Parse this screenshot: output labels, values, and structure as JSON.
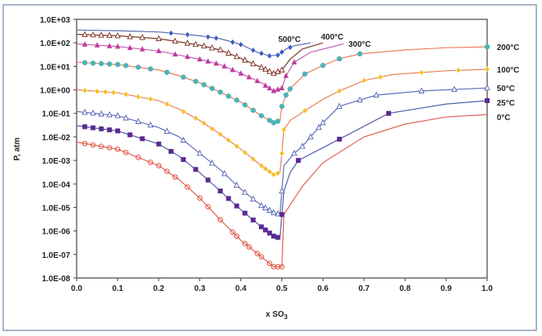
{
  "chart_data": {
    "type": "scatter",
    "title": "",
    "xlabel": "x SO",
    "xlabel_sub": "3",
    "ylabel": "P, atm",
    "xlim": [
      0,
      1
    ],
    "ylim": [
      1e-08,
      1000.0
    ],
    "yscale": "log",
    "grid": false,
    "xticks": [
      "0.0",
      "0.1",
      "0.2",
      "0.3",
      "0.4",
      "0.5",
      "0.6",
      "0.7",
      "0.8",
      "0.9",
      "1.0"
    ],
    "yticks": [
      "1.0E-08",
      "1.0E-07",
      "1.0E-06",
      "1.0E-05",
      "1.0E-04",
      "1.0E-03",
      "1.0E-02",
      "1.0E-01",
      "1.0E+00",
      "1.0E+01",
      "1.0E+02",
      "1.0E+03"
    ],
    "series": [
      {
        "name": "500°C",
        "marker": "diamond",
        "marker_color": "#3a5cc0",
        "line_color": "#5a6ab0",
        "label_pos": "top",
        "line": [
          [
            0,
            350
          ],
          [
            0.1,
            330
          ],
          [
            0.2,
            290
          ],
          [
            0.3,
            200
          ],
          [
            0.35,
            150
          ],
          [
            0.4,
            85
          ],
          [
            0.44,
            40
          ],
          [
            0.47,
            28
          ],
          [
            0.49,
            30
          ],
          [
            0.51,
            55
          ],
          [
            0.53,
            75
          ],
          [
            0.57,
            100
          ]
        ],
        "markers_x": [
          0.23,
          0.27,
          0.32,
          0.34,
          0.38,
          0.4,
          0.43,
          0.45,
          0.47,
          0.49,
          0.5,
          0.52
        ]
      },
      {
        "name": "400°C",
        "marker": "triangle-open",
        "marker_color": "#7a2a1a",
        "line_color": "#7a3a2a",
        "label_pos": "top",
        "line": [
          [
            0,
            230
          ],
          [
            0.1,
            200
          ],
          [
            0.2,
            150
          ],
          [
            0.3,
            80
          ],
          [
            0.35,
            50
          ],
          [
            0.4,
            22
          ],
          [
            0.45,
            9
          ],
          [
            0.48,
            5
          ],
          [
            0.5,
            7
          ],
          [
            0.52,
            20
          ],
          [
            0.55,
            55
          ],
          [
            0.6,
            100
          ]
        ],
        "markers_x": [
          0.02,
          0.04,
          0.06,
          0.08,
          0.1,
          0.13,
          0.16,
          0.2,
          0.24,
          0.27,
          0.29,
          0.31,
          0.33,
          0.35,
          0.37,
          0.39,
          0.41,
          0.43,
          0.45,
          0.46,
          0.47,
          0.48,
          0.49,
          0.5
        ]
      },
      {
        "name": "300°C",
        "marker": "triangle",
        "marker_color": "#c03aa0",
        "line_color": "#c060b0",
        "label_pos": "top",
        "line": [
          [
            0,
            90
          ],
          [
            0.1,
            70
          ],
          [
            0.2,
            45
          ],
          [
            0.3,
            20
          ],
          [
            0.35,
            12
          ],
          [
            0.4,
            5
          ],
          [
            0.45,
            2
          ],
          [
            0.48,
            0.9
          ],
          [
            0.5,
            1.2
          ],
          [
            0.51,
            4
          ],
          [
            0.53,
            15
          ],
          [
            0.57,
            40
          ],
          [
            0.65,
            90
          ]
        ],
        "markers_x": [
          0.02,
          0.05,
          0.08,
          0.1,
          0.13,
          0.16,
          0.2,
          0.24,
          0.27,
          0.3,
          0.32,
          0.34,
          0.36,
          0.38,
          0.4,
          0.42,
          0.44,
          0.46,
          0.47,
          0.48,
          0.49,
          0.5,
          0.51,
          0.53
        ]
      },
      {
        "name": "200°C",
        "marker": "circle",
        "marker_color": "#40b8c0",
        "line_color": "#e8805a",
        "label_pos": "right",
        "line": [
          [
            0,
            15
          ],
          [
            0.1,
            12
          ],
          [
            0.2,
            7
          ],
          [
            0.25,
            4
          ],
          [
            0.3,
            2
          ],
          [
            0.35,
            0.8
          ],
          [
            0.4,
            0.3
          ],
          [
            0.45,
            0.08
          ],
          [
            0.48,
            0.04
          ],
          [
            0.495,
            0.05
          ],
          [
            0.5,
            0.2
          ],
          [
            0.51,
            0.6
          ],
          [
            0.52,
            1.1
          ],
          [
            0.556,
            4.7
          ],
          [
            0.6,
            11
          ],
          [
            0.64,
            21
          ],
          [
            0.69,
            34
          ],
          [
            0.8,
            50
          ],
          [
            0.9,
            62
          ],
          [
            1,
            68
          ]
        ],
        "markers_x": [
          0.02,
          0.04,
          0.06,
          0.08,
          0.1,
          0.12,
          0.15,
          0.18,
          0.22,
          0.26,
          0.29,
          0.31,
          0.33,
          0.35,
          0.37,
          0.39,
          0.41,
          0.43,
          0.45,
          0.47,
          0.48,
          0.49,
          0.5,
          0.51,
          0.52,
          0.556,
          0.6,
          0.64,
          0.69,
          1
        ]
      },
      {
        "name": "100°C",
        "marker": "diamond",
        "marker_color": "#f5c020",
        "line_color": "#e8805a",
        "label_pos": "right",
        "line": [
          [
            0,
            1
          ],
          [
            0.1,
            0.75
          ],
          [
            0.2,
            0.35
          ],
          [
            0.25,
            0.15
          ],
          [
            0.3,
            0.05
          ],
          [
            0.35,
            0.013
          ],
          [
            0.4,
            0.003
          ],
          [
            0.45,
            0.0006
          ],
          [
            0.48,
            0.00025
          ],
          [
            0.495,
            0.0003
          ],
          [
            0.5,
            0.002
          ],
          [
            0.505,
            0.02
          ],
          [
            0.52,
            0.05
          ],
          [
            0.556,
            0.13
          ],
          [
            0.6,
            0.4
          ],
          [
            0.64,
            0.9
          ],
          [
            0.7,
            2.5
          ],
          [
            0.77,
            4.5
          ],
          [
            0.9,
            6.5
          ],
          [
            1,
            7.5
          ]
        ],
        "markers_x": [
          0.02,
          0.05,
          0.07,
          0.09,
          0.12,
          0.15,
          0.18,
          0.22,
          0.26,
          0.29,
          0.31,
          0.33,
          0.35,
          0.37,
          0.39,
          0.41,
          0.43,
          0.45,
          0.46,
          0.47,
          0.48,
          0.49,
          0.5,
          0.505,
          0.556,
          0.64,
          0.7,
          0.74,
          0.84,
          0.93,
          1
        ]
      },
      {
        "name": "50°C",
        "marker": "triangle-open",
        "marker_color": "#5060b0",
        "line_color": "#6070b8",
        "label_pos": "right",
        "line": [
          [
            0,
            0.12
          ],
          [
            0.1,
            0.08
          ],
          [
            0.2,
            0.025
          ],
          [
            0.25,
            0.01
          ],
          [
            0.3,
            0.002
          ],
          [
            0.35,
            0.0004
          ],
          [
            0.4,
            6e-05
          ],
          [
            0.45,
            1.2e-05
          ],
          [
            0.48,
            6e-06
          ],
          [
            0.495,
            5e-06
          ],
          [
            0.5,
            5e-05
          ],
          [
            0.505,
            0.0006
          ],
          [
            0.53,
            0.002
          ],
          [
            0.55,
            0.004
          ],
          [
            0.6,
            0.04
          ],
          [
            0.64,
            0.2
          ],
          [
            0.73,
            0.6
          ],
          [
            0.84,
            0.9
          ],
          [
            1,
            1.2
          ]
        ],
        "markers_x": [
          0.02,
          0.04,
          0.06,
          0.08,
          0.1,
          0.12,
          0.15,
          0.18,
          0.22,
          0.26,
          0.3,
          0.33,
          0.36,
          0.39,
          0.41,
          0.43,
          0.45,
          0.46,
          0.47,
          0.48,
          0.49,
          0.5,
          0.53,
          0.55,
          0.57,
          0.59,
          0.6,
          0.64,
          0.69,
          0.73,
          0.84,
          0.92,
          1
        ]
      },
      {
        "name": "25°C",
        "marker": "square",
        "marker_color": "#5a2a90",
        "line_color": "#5060b0",
        "label_pos": "right",
        "line": [
          [
            0,
            0.03
          ],
          [
            0.1,
            0.018
          ],
          [
            0.2,
            0.005
          ],
          [
            0.25,
            0.0015
          ],
          [
            0.3,
            0.0003
          ],
          [
            0.35,
            5e-05
          ],
          [
            0.4,
            8e-06
          ],
          [
            0.45,
            1.5e-06
          ],
          [
            0.48,
            6e-07
          ],
          [
            0.495,
            5e-07
          ],
          [
            0.5,
            5e-06
          ],
          [
            0.505,
            5e-05
          ],
          [
            0.52,
            0.0003
          ],
          [
            0.54,
            0.001
          ],
          [
            0.64,
            0.008
          ],
          [
            0.76,
            0.1
          ],
          [
            0.9,
            0.25
          ],
          [
            1,
            0.35
          ]
        ],
        "markers_x": [
          0.02,
          0.04,
          0.06,
          0.08,
          0.1,
          0.13,
          0.16,
          0.2,
          0.23,
          0.26,
          0.29,
          0.32,
          0.35,
          0.37,
          0.39,
          0.41,
          0.43,
          0.45,
          0.46,
          0.47,
          0.48,
          0.49,
          0.5,
          0.54,
          0.64,
          0.76,
          1
        ]
      },
      {
        "name": "0°C",
        "marker": "circle-open",
        "marker_color": "#e05040",
        "line_color": "#e06050",
        "label_pos": "right",
        "line": [
          [
            0,
            0.006
          ],
          [
            0.1,
            0.003
          ],
          [
            0.2,
            0.0006
          ],
          [
            0.25,
            0.00015
          ],
          [
            0.3,
            2.5e-05
          ],
          [
            0.35,
            3e-06
          ],
          [
            0.4,
            4e-07
          ],
          [
            0.45,
            8e-08
          ],
          [
            0.48,
            3e-08
          ],
          [
            0.495,
            3e-08
          ],
          [
            0.5,
            3e-08
          ],
          [
            0.505,
            5e-06
          ],
          [
            0.55,
            8e-05
          ],
          [
            0.6,
            0.0008
          ],
          [
            0.7,
            0.01
          ],
          [
            0.8,
            0.035
          ],
          [
            0.9,
            0.07
          ],
          [
            1,
            0.09
          ]
        ],
        "markers_x": [
          0.02,
          0.04,
          0.06,
          0.08,
          0.1,
          0.12,
          0.15,
          0.18,
          0.2,
          0.22,
          0.24,
          0.27,
          0.3,
          0.32,
          0.35,
          0.38,
          0.39,
          0.41,
          0.42,
          0.44,
          0.45,
          0.47,
          0.48,
          0.49,
          0.5
        ]
      }
    ]
  }
}
